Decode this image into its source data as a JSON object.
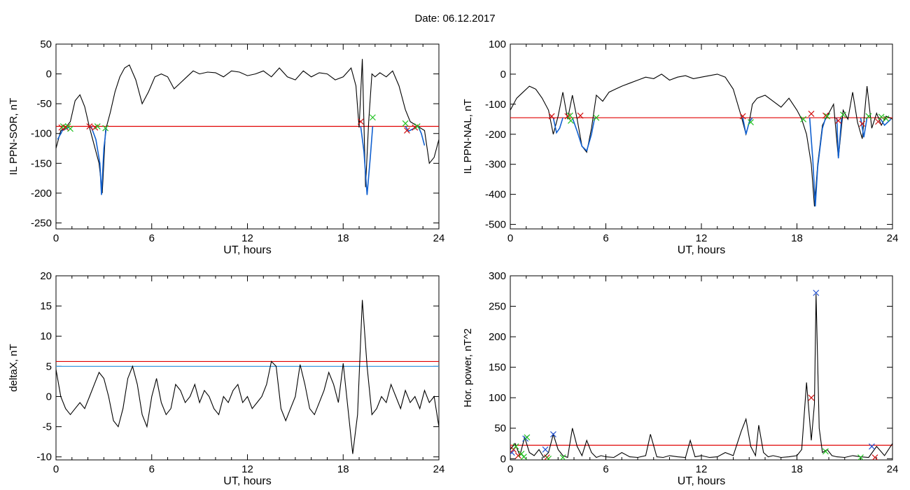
{
  "page": {
    "title": "Date:  06.12.2017"
  },
  "colors": {
    "trace": "#000000",
    "highlight": "#1060d0",
    "threshold_red": "#e00000",
    "threshold_blue": "#3a9ae0",
    "marker_red": "#d01010",
    "marker_green": "#20c020",
    "marker_blue": "#2050d0"
  },
  "chart_data": [
    {
      "id": "sor",
      "type": "line",
      "xlabel": "UT, hours",
      "ylabel": "IL PPN-SOR, nT",
      "xlim": [
        0,
        24
      ],
      "ylim": [
        -260,
        50
      ],
      "xticks": [
        0,
        6,
        12,
        18,
        24
      ],
      "yticks": [
        50,
        0,
        -50,
        -100,
        -150,
        -200,
        -250
      ],
      "threshold": {
        "value": -88,
        "color": "#e00000"
      },
      "series": [
        {
          "x": [
            0,
            0.3,
            0.6,
            0.9,
            1.2,
            1.5,
            1.8,
            2.1,
            2.4,
            2.7,
            2.9,
            3.1,
            3.4,
            3.7,
            4.0,
            4.3,
            4.6,
            5.0,
            5.4,
            5.8,
            6.2,
            6.6,
            7.0,
            7.4,
            7.8,
            8.2,
            8.6,
            9.0,
            9.5,
            10,
            10.5,
            11,
            11.5,
            12,
            12.5,
            13,
            13.5,
            14,
            14.5,
            15,
            15.5,
            16,
            16.5,
            17,
            17.5,
            18,
            18.5,
            18.8,
            19.0,
            19.2,
            19.4,
            19.6,
            19.8,
            20.0,
            20.3,
            20.7,
            21.1,
            21.5,
            21.9,
            22.2,
            22.5,
            22.8,
            23.1,
            23.4,
            23.7,
            24
          ],
          "y": [
            -125,
            -95,
            -90,
            -80,
            -45,
            -35,
            -55,
            -90,
            -120,
            -150,
            -200,
            -95,
            -65,
            -30,
            -5,
            10,
            15,
            -10,
            -50,
            -30,
            -5,
            0,
            -5,
            -25,
            -15,
            -5,
            5,
            0,
            3,
            2,
            -5,
            5,
            3,
            -3,
            0,
            5,
            -5,
            10,
            -5,
            -10,
            5,
            -5,
            2,
            0,
            -10,
            -5,
            10,
            -20,
            -90,
            25,
            -190,
            -80,
            0,
            -5,
            2,
            -5,
            5,
            -20,
            -60,
            -80,
            -85,
            -90,
            -95,
            -150,
            -140,
            -110
          ]
        }
      ],
      "highlight_segments": [
        {
          "x": [
            0.1,
            0.4,
            0.8
          ],
          "y": [
            -110,
            -95,
            -90
          ]
        },
        {
          "x": [
            2.2,
            2.5,
            2.75,
            2.85,
            3.0,
            3.15
          ],
          "y": [
            -88,
            -110,
            -150,
            -203,
            -125,
            -90
          ]
        },
        {
          "x": [
            19.1,
            19.3,
            19.5,
            19.7,
            19.85
          ],
          "y": [
            -88,
            -130,
            -203,
            -140,
            -88
          ]
        },
        {
          "x": [
            21.9,
            22.1,
            22.4,
            22.6
          ],
          "y": [
            -88,
            -96,
            -92,
            -88
          ]
        },
        {
          "x": [
            22.7,
            22.9,
            23.1
          ],
          "y": [
            -88,
            -100,
            -120
          ]
        }
      ],
      "markers": [
        {
          "x": 0.35,
          "y": -90,
          "c": "r"
        },
        {
          "x": 0.45,
          "y": -88,
          "c": "g"
        },
        {
          "x": 0.6,
          "y": -90,
          "c": "r"
        },
        {
          "x": 0.75,
          "y": -88,
          "c": "g"
        },
        {
          "x": 0.9,
          "y": -92,
          "c": "g"
        },
        {
          "x": 2.1,
          "y": -88,
          "c": "r"
        },
        {
          "x": 2.45,
          "y": -90,
          "c": "r"
        },
        {
          "x": 2.6,
          "y": -88,
          "c": "g"
        },
        {
          "x": 3.1,
          "y": -91,
          "c": "g"
        },
        {
          "x": 19.1,
          "y": -80,
          "c": "r"
        },
        {
          "x": 19.85,
          "y": -73,
          "c": "g"
        },
        {
          "x": 21.9,
          "y": -83,
          "c": "g"
        },
        {
          "x": 22.0,
          "y": -95,
          "c": "r"
        },
        {
          "x": 22.5,
          "y": -90,
          "c": "r"
        },
        {
          "x": 22.65,
          "y": -88,
          "c": "g"
        }
      ]
    },
    {
      "id": "nal",
      "type": "line",
      "xlabel": "UT, hours",
      "ylabel": "IL PPN-NAL, nT",
      "xlim": [
        0,
        24
      ],
      "ylim": [
        -515,
        100
      ],
      "xticks": [
        0,
        6,
        12,
        18,
        24
      ],
      "yticks": [
        100,
        0,
        -100,
        -200,
        -300,
        -400,
        -500
      ],
      "threshold": {
        "value": -145,
        "color": "#e00000"
      },
      "series": [
        {
          "x": [
            0,
            0.4,
            0.8,
            1.2,
            1.6,
            2.0,
            2.4,
            2.7,
            3.0,
            3.3,
            3.6,
            3.9,
            4.2,
            4.5,
            4.8,
            5.1,
            5.4,
            5.8,
            6.2,
            6.6,
            7.0,
            7.5,
            8.0,
            8.5,
            9.0,
            9.5,
            10,
            10.5,
            11,
            11.5,
            12,
            12.5,
            13,
            13.5,
            14,
            14.5,
            14.8,
            15.0,
            15.2,
            15.5,
            16,
            16.5,
            17,
            17.5,
            18,
            18.3,
            18.6,
            18.9,
            19.1,
            19.3,
            19.6,
            20.0,
            20.3,
            20.6,
            20.9,
            21.2,
            21.5,
            21.8,
            22.1,
            22.4,
            22.7,
            23.0,
            23.3,
            23.6,
            24
          ],
          "y": [
            -120,
            -80,
            -60,
            -40,
            -50,
            -80,
            -120,
            -200,
            -140,
            -60,
            -150,
            -70,
            -150,
            -240,
            -260,
            -180,
            -70,
            -90,
            -60,
            -50,
            -40,
            -30,
            -20,
            -10,
            -15,
            0,
            -20,
            -10,
            -5,
            -15,
            -10,
            -5,
            0,
            -10,
            -50,
            -140,
            -200,
            -160,
            -100,
            -80,
            -70,
            -90,
            -110,
            -80,
            -120,
            -150,
            -200,
            -300,
            -440,
            -300,
            -170,
            -130,
            -100,
            -280,
            -120,
            -150,
            -60,
            -160,
            -215,
            -40,
            -180,
            -130,
            -170,
            -140,
            -150
          ]
        }
      ],
      "highlight_segments": [
        {
          "x": [
            2.7,
            2.9,
            3.1,
            3.3
          ],
          "y": [
            -145,
            -195,
            -180,
            -145
          ]
        },
        {
          "x": [
            3.9,
            4.2,
            4.5,
            4.8,
            5.1,
            5.3
          ],
          "y": [
            -145,
            -190,
            -240,
            -255,
            -200,
            -145
          ]
        },
        {
          "x": [
            14.6,
            14.8,
            15.0,
            15.2
          ],
          "y": [
            -145,
            -200,
            -160,
            -145
          ]
        },
        {
          "x": [
            18.8,
            19.0,
            19.15,
            19.3,
            19.6,
            19.8
          ],
          "y": [
            -145,
            -290,
            -440,
            -310,
            -180,
            -145
          ]
        },
        {
          "x": [
            20.5,
            20.6,
            20.8
          ],
          "y": [
            -145,
            -280,
            -145
          ]
        },
        {
          "x": [
            22.0,
            22.2,
            22.4
          ],
          "y": [
            -145,
            -210,
            -145
          ]
        },
        {
          "x": [
            23.2,
            23.5,
            23.9
          ],
          "y": [
            -145,
            -170,
            -150
          ]
        }
      ],
      "markers": [
        {
          "x": 2.6,
          "y": -140,
          "c": "r"
        },
        {
          "x": 3.6,
          "y": -140,
          "c": "r"
        },
        {
          "x": 3.75,
          "y": -138,
          "c": "g"
        },
        {
          "x": 3.8,
          "y": -155,
          "c": "g"
        },
        {
          "x": 4.4,
          "y": -138,
          "c": "r"
        },
        {
          "x": 5.4,
          "y": -145,
          "c": "g"
        },
        {
          "x": 14.6,
          "y": -140,
          "c": "r"
        },
        {
          "x": 15.1,
          "y": -160,
          "c": "g"
        },
        {
          "x": 18.4,
          "y": -150,
          "c": "g"
        },
        {
          "x": 18.9,
          "y": -132,
          "c": "r"
        },
        {
          "x": 19.8,
          "y": -138,
          "c": "r"
        },
        {
          "x": 19.9,
          "y": -140,
          "c": "g"
        },
        {
          "x": 20.6,
          "y": -155,
          "c": "r"
        },
        {
          "x": 20.9,
          "y": -135,
          "c": "g"
        },
        {
          "x": 22.1,
          "y": -165,
          "c": "r"
        },
        {
          "x": 22.5,
          "y": -140,
          "c": "g"
        },
        {
          "x": 23.1,
          "y": -158,
          "c": "r"
        },
        {
          "x": 23.3,
          "y": -142,
          "c": "g"
        },
        {
          "x": 23.6,
          "y": -148,
          "c": "g"
        }
      ]
    },
    {
      "id": "deltax",
      "type": "line",
      "xlabel": "UT, hours",
      "ylabel": "deltaX, nT",
      "xlim": [
        0,
        24
      ],
      "ylim": [
        -10.5,
        20
      ],
      "xticks": [
        0,
        6,
        12,
        18,
        24
      ],
      "yticks": [
        20,
        15,
        10,
        5,
        0,
        -5,
        -10
      ],
      "thresholds": [
        {
          "value": 5.8,
          "color": "#e00000"
        },
        {
          "value": 5.0,
          "color": "#3a9ae0"
        }
      ],
      "series": [
        {
          "x": [
            0,
            0.3,
            0.6,
            0.9,
            1.2,
            1.5,
            1.8,
            2.1,
            2.4,
            2.7,
            3.0,
            3.3,
            3.6,
            3.9,
            4.2,
            4.5,
            4.8,
            5.1,
            5.4,
            5.7,
            6.0,
            6.3,
            6.6,
            6.9,
            7.2,
            7.5,
            7.8,
            8.1,
            8.4,
            8.7,
            9.0,
            9.3,
            9.6,
            9.9,
            10.2,
            10.5,
            10.8,
            11.1,
            11.4,
            11.7,
            12.0,
            12.3,
            12.6,
            12.9,
            13.2,
            13.5,
            13.8,
            14.1,
            14.4,
            14.7,
            15.0,
            15.3,
            15.6,
            15.9,
            16.2,
            16.5,
            16.8,
            17.1,
            17.4,
            17.7,
            18.0,
            18.3,
            18.6,
            18.9,
            19.2,
            19.5,
            19.8,
            20.1,
            20.4,
            20.7,
            21.0,
            21.3,
            21.6,
            21.9,
            22.2,
            22.5,
            22.8,
            23.1,
            23.4,
            23.7,
            24
          ],
          "y": [
            4.5,
            0,
            -2,
            -3,
            -2,
            -1,
            -2,
            0,
            2,
            4,
            3,
            0,
            -4,
            -5,
            -2,
            3,
            5,
            2,
            -3,
            -5,
            0,
            3,
            -1,
            -3,
            -2,
            2,
            1,
            -1,
            0,
            2,
            -1,
            1,
            0,
            -2,
            -3,
            0,
            -1,
            1,
            2,
            -1,
            0,
            -2,
            -1,
            0,
            2,
            5.8,
            5,
            -2,
            -4,
            -2,
            0,
            5.3,
            2,
            -2,
            -3,
            -1,
            1,
            4,
            2,
            -1,
            5.5,
            -2,
            -9.5,
            -3,
            16,
            5,
            -3,
            -2,
            0,
            -1,
            2,
            0,
            -2,
            1,
            -1,
            0,
            -2,
            1,
            -1,
            0,
            -5
          ]
        }
      ],
      "markers": []
    },
    {
      "id": "power",
      "type": "line",
      "xlabel": "UT, hours",
      "ylabel": "Hor. power, nT^2",
      "xlim": [
        0,
        24
      ],
      "ylim": [
        -2,
        300
      ],
      "xticks": [
        0,
        6,
        12,
        18,
        24
      ],
      "yticks": [
        300,
        250,
        200,
        150,
        100,
        50,
        0
      ],
      "threshold": {
        "value": 22,
        "color": "#e00000"
      },
      "series": [
        {
          "x": [
            0,
            0.3,
            0.6,
            0.9,
            1.2,
            1.5,
            1.8,
            2.1,
            2.4,
            2.7,
            3.0,
            3.3,
            3.6,
            3.9,
            4.2,
            4.5,
            4.8,
            5.1,
            5.4,
            5.7,
            6.0,
            6.5,
            7.0,
            7.5,
            8.0,
            8.5,
            8.8,
            9.2,
            9.6,
            10.0,
            10.5,
            11.0,
            11.3,
            11.6,
            12.0,
            12.5,
            13.0,
            13.5,
            14.0,
            14.5,
            14.8,
            15.1,
            15.4,
            15.6,
            15.9,
            16.2,
            16.5,
            17.0,
            17.5,
            18.0,
            18.3,
            18.6,
            18.9,
            19.1,
            19.2,
            19.4,
            19.6,
            19.9,
            20.2,
            20.5,
            21.0,
            21.5,
            22.0,
            22.5,
            23.0,
            23.5,
            24
          ],
          "y": [
            15,
            25,
            5,
            35,
            10,
            5,
            15,
            2,
            10,
            40,
            15,
            5,
            2,
            50,
            20,
            5,
            30,
            10,
            2,
            5,
            3,
            2,
            10,
            3,
            2,
            5,
            40,
            3,
            2,
            5,
            3,
            2,
            30,
            3,
            5,
            2,
            3,
            10,
            5,
            45,
            65,
            20,
            5,
            55,
            10,
            3,
            5,
            2,
            3,
            5,
            15,
            125,
            30,
            90,
            270,
            50,
            10,
            15,
            5,
            3,
            2,
            5,
            3,
            2,
            20,
            5,
            25
          ]
        }
      ],
      "markers": [
        {
          "x": 0.1,
          "y": 10,
          "c": "b"
        },
        {
          "x": 0.2,
          "y": 15,
          "c": "r"
        },
        {
          "x": 0.35,
          "y": 20,
          "c": "g"
        },
        {
          "x": 0.5,
          "y": 5,
          "c": "r"
        },
        {
          "x": 0.7,
          "y": 8,
          "c": "g"
        },
        {
          "x": 0.85,
          "y": 3,
          "c": "g"
        },
        {
          "x": 0.95,
          "y": 33,
          "c": "b"
        },
        {
          "x": 1.05,
          "y": 35,
          "c": "g"
        },
        {
          "x": 2.2,
          "y": 15,
          "c": "b"
        },
        {
          "x": 2.3,
          "y": 2,
          "c": "r"
        },
        {
          "x": 2.4,
          "y": 0,
          "c": "g"
        },
        {
          "x": 2.7,
          "y": 40,
          "c": "b"
        },
        {
          "x": 3.3,
          "y": 2,
          "c": "g"
        },
        {
          "x": 18.9,
          "y": 100,
          "c": "r"
        },
        {
          "x": 19.2,
          "y": 272,
          "c": "b"
        },
        {
          "x": 19.8,
          "y": 12,
          "c": "g"
        },
        {
          "x": 22.0,
          "y": 2,
          "c": "g"
        },
        {
          "x": 22.7,
          "y": 20,
          "c": "b"
        },
        {
          "x": 22.9,
          "y": 2,
          "c": "r"
        }
      ]
    }
  ]
}
